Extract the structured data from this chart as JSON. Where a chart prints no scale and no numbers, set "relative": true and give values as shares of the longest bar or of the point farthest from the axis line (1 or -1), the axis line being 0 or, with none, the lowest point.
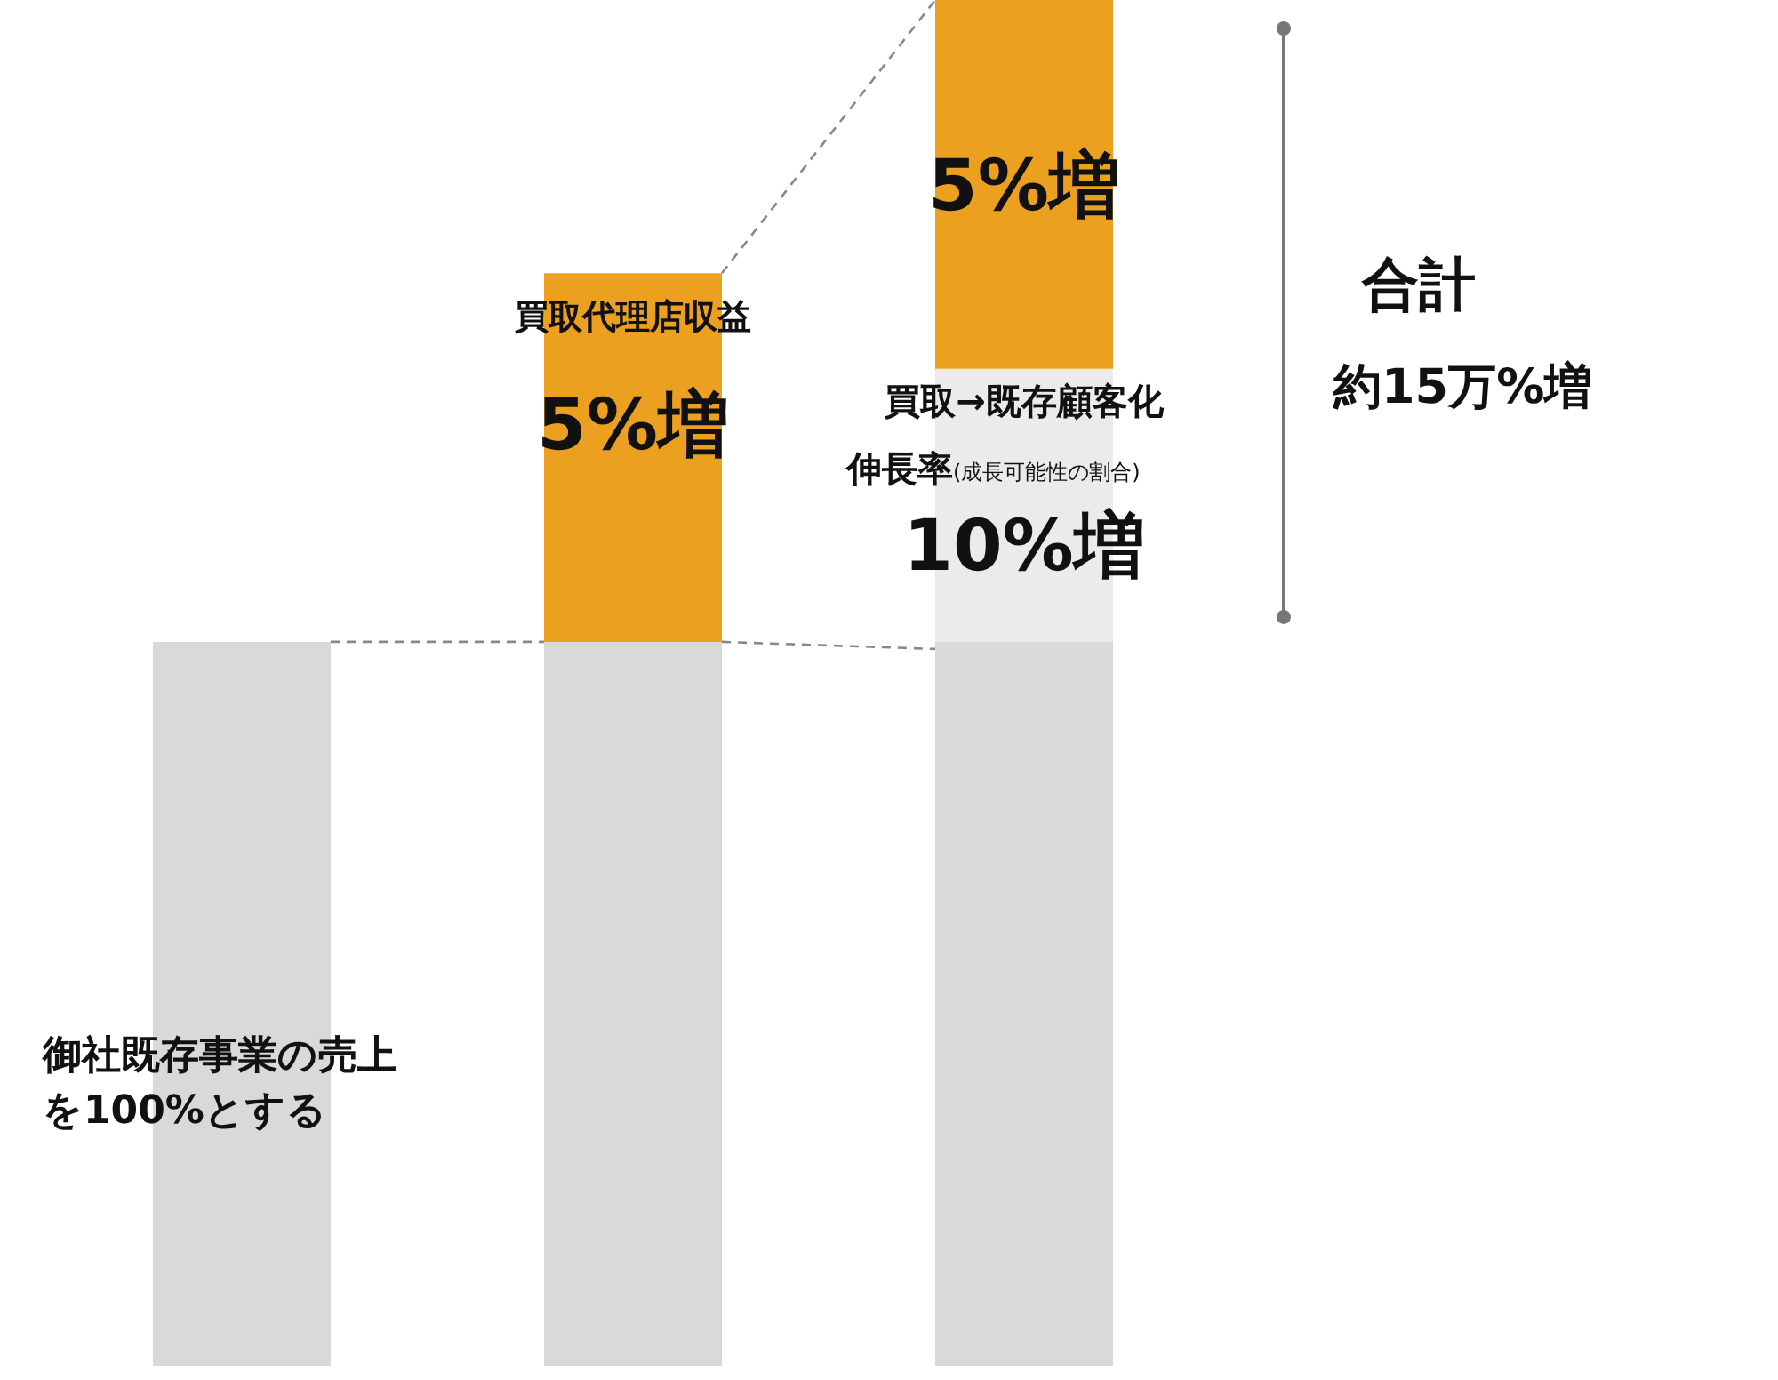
{
  "chart_data": {
    "type": "bar",
    "stacked": true,
    "relative": true,
    "categories": [
      null,
      null,
      null
    ],
    "series": [
      {
        "color": "#d9d9d9",
        "values": [
          0.53,
          0.53,
          0.53
        ]
      },
      {
        "color": "#ebebeb",
        "values": [
          0,
          0,
          0.2
        ]
      },
      {
        "color": "#eca01f",
        "values": [
          0,
          0.27,
          0.27
        ]
      }
    ],
    "annotations": [
      "御社既存事業の売上",
      "を100%とする",
      "買取代理店収益",
      "5%増",
      "買取→既存顧客化",
      "伸長率",
      "(成長可能性の割合)",
      "10%増",
      "5%増",
      "合計",
      "約15万%増"
    ]
  }
}
